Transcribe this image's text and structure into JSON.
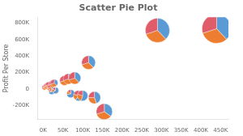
{
  "chart_data": {
    "type": "scatter_pie",
    "title": "Scatter Pie Plot",
    "ylabel": "Profit Per Store",
    "x": [
      3000,
      6000,
      9000,
      12000,
      14000,
      16000,
      19000,
      21000,
      24000,
      28000,
      31000,
      54000,
      64000,
      70000,
      80000,
      90000,
      100000,
      115000,
      130000,
      155000,
      290000,
      440000
    ],
    "values": [
      18000,
      28000,
      38000,
      48000,
      52000,
      8000,
      22000,
      -32000,
      62000,
      72000,
      -18000,
      102000,
      122000,
      -58000,
      132000,
      -82000,
      -82000,
      320000,
      -105000,
      -275000,
      710000,
      730000
    ],
    "sizes": [
      3.0,
      3.0,
      3.5,
      3.5,
      3.5,
      3.0,
      3.5,
      3.5,
      4.5,
      4.5,
      4.0,
      6.0,
      6.5,
      5.0,
      7.5,
      6.5,
      6.5,
      8.5,
      7.5,
      10.0,
      15.0,
      18.0
    ],
    "shares": [
      [
        0.38,
        0.32,
        0.3
      ],
      [
        0.38,
        0.32,
        0.3
      ],
      [
        0.38,
        0.32,
        0.3
      ],
      [
        0.38,
        0.32,
        0.3
      ],
      [
        0.38,
        0.32,
        0.3
      ],
      [
        0.55,
        0.22,
        0.23
      ],
      [
        0.38,
        0.32,
        0.3
      ],
      [
        0.72,
        0.14,
        0.14
      ],
      [
        0.38,
        0.32,
        0.3
      ],
      [
        0.38,
        0.32,
        0.3
      ],
      [
        0.65,
        0.17,
        0.18
      ],
      [
        0.38,
        0.32,
        0.3
      ],
      [
        0.38,
        0.32,
        0.3
      ],
      [
        0.72,
        0.14,
        0.14
      ],
      [
        0.38,
        0.32,
        0.3
      ],
      [
        0.6,
        0.2,
        0.2
      ],
      [
        0.55,
        0.25,
        0.2
      ],
      [
        0.38,
        0.32,
        0.3
      ],
      [
        0.45,
        0.3,
        0.25
      ],
      [
        0.35,
        0.35,
        0.3
      ],
      [
        0.38,
        0.32,
        0.3
      ],
      [
        0.38,
        0.32,
        0.3
      ]
    ],
    "colors": [
      "#5b9bd5",
      "#ed7d31",
      "#e05c68"
    ],
    "xlim": [
      -15000,
      470000
    ],
    "ylim": [
      -370000,
      870000
    ],
    "xticks": [
      {
        "value": 0,
        "label": "0K"
      },
      {
        "value": 50000,
        "label": "50K"
      },
      {
        "value": 100000,
        "label": "100K"
      },
      {
        "value": 150000,
        "label": "150K"
      },
      {
        "value": 200000,
        "label": "200K"
      },
      {
        "value": 250000,
        "label": "250K"
      },
      {
        "value": 300000,
        "label": "300K"
      },
      {
        "value": 350000,
        "label": "350K"
      },
      {
        "value": 400000,
        "label": "400K"
      },
      {
        "value": 450000,
        "label": "450K"
      }
    ],
    "yticks": [
      {
        "value": -200000,
        "label": "-200K"
      },
      0,
      {
        "value": 200000,
        "label": "200K"
      },
      {
        "value": 400000,
        "label": "400K"
      },
      {
        "value": 600000,
        "label": "600K"
      },
      {
        "value": 800000,
        "label": "800K"
      }
    ],
    "grid": false,
    "legend": false
  }
}
